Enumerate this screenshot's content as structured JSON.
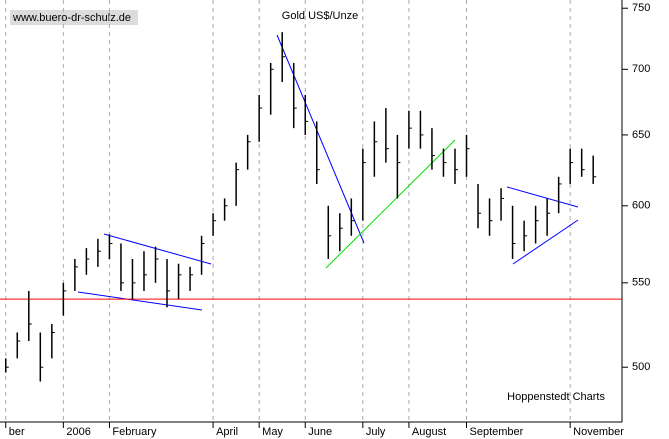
{
  "chart_data": {
    "type": "ohlc",
    "title": "Gold US$/Unze",
    "source": "www.buero-dr-schulz.de",
    "credit": "Hoppenstedt Charts",
    "categories": [
      "ber",
      null,
      null,
      null,
      null,
      "2006",
      null,
      null,
      null,
      "February",
      null,
      null,
      null,
      null,
      null,
      null,
      null,
      null,
      "April",
      null,
      null,
      null,
      "May",
      null,
      null,
      null,
      "June",
      null,
      null,
      null,
      null,
      "July",
      null,
      null,
      null,
      "August",
      null,
      null,
      null,
      null,
      "September",
      null,
      null,
      null,
      null,
      null,
      null,
      null,
      null,
      "November",
      null,
      null,
      null,
      null
    ],
    "high": [
      505,
      520,
      545,
      520,
      525,
      550,
      565,
      572,
      578,
      581,
      575,
      565,
      570,
      573,
      565,
      562,
      560,
      580,
      595,
      605,
      630,
      650,
      680,
      705,
      730,
      705,
      680,
      660,
      600,
      595,
      605,
      640,
      660,
      670,
      650,
      668,
      668,
      655,
      640,
      640,
      650,
      615,
      605,
      612,
      600,
      590,
      600,
      605,
      620,
      640,
      640,
      635,
      null,
      null
    ],
    "low": [
      497,
      505,
      515,
      492,
      505,
      530,
      545,
      555,
      560,
      565,
      545,
      540,
      545,
      550,
      535,
      540,
      545,
      555,
      580,
      590,
      600,
      625,
      645,
      665,
      690,
      655,
      650,
      615,
      565,
      570,
      580,
      590,
      620,
      630,
      605,
      640,
      640,
      625,
      620,
      615,
      620,
      585,
      580,
      590,
      565,
      570,
      575,
      580,
      595,
      615,
      620,
      615,
      null,
      null
    ],
    "close": [
      500,
      515,
      525,
      500,
      520,
      545,
      560,
      565,
      570,
      575,
      550,
      550,
      555,
      565,
      545,
      555,
      555,
      575,
      590,
      600,
      625,
      645,
      670,
      700,
      710,
      670,
      660,
      625,
      580,
      585,
      590,
      630,
      645,
      640,
      630,
      655,
      650,
      635,
      630,
      625,
      640,
      595,
      590,
      605,
      575,
      580,
      590,
      595,
      615,
      630,
      625,
      620,
      null,
      null
    ],
    "color": "#000000",
    "hline": {
      "value": 540,
      "color": "#ff0000"
    },
    "ylim": [
      470,
      757
    ],
    "yticks": [
      500,
      550,
      600,
      650,
      700,
      750
    ],
    "log_y": true,
    "grid": true
  }
}
